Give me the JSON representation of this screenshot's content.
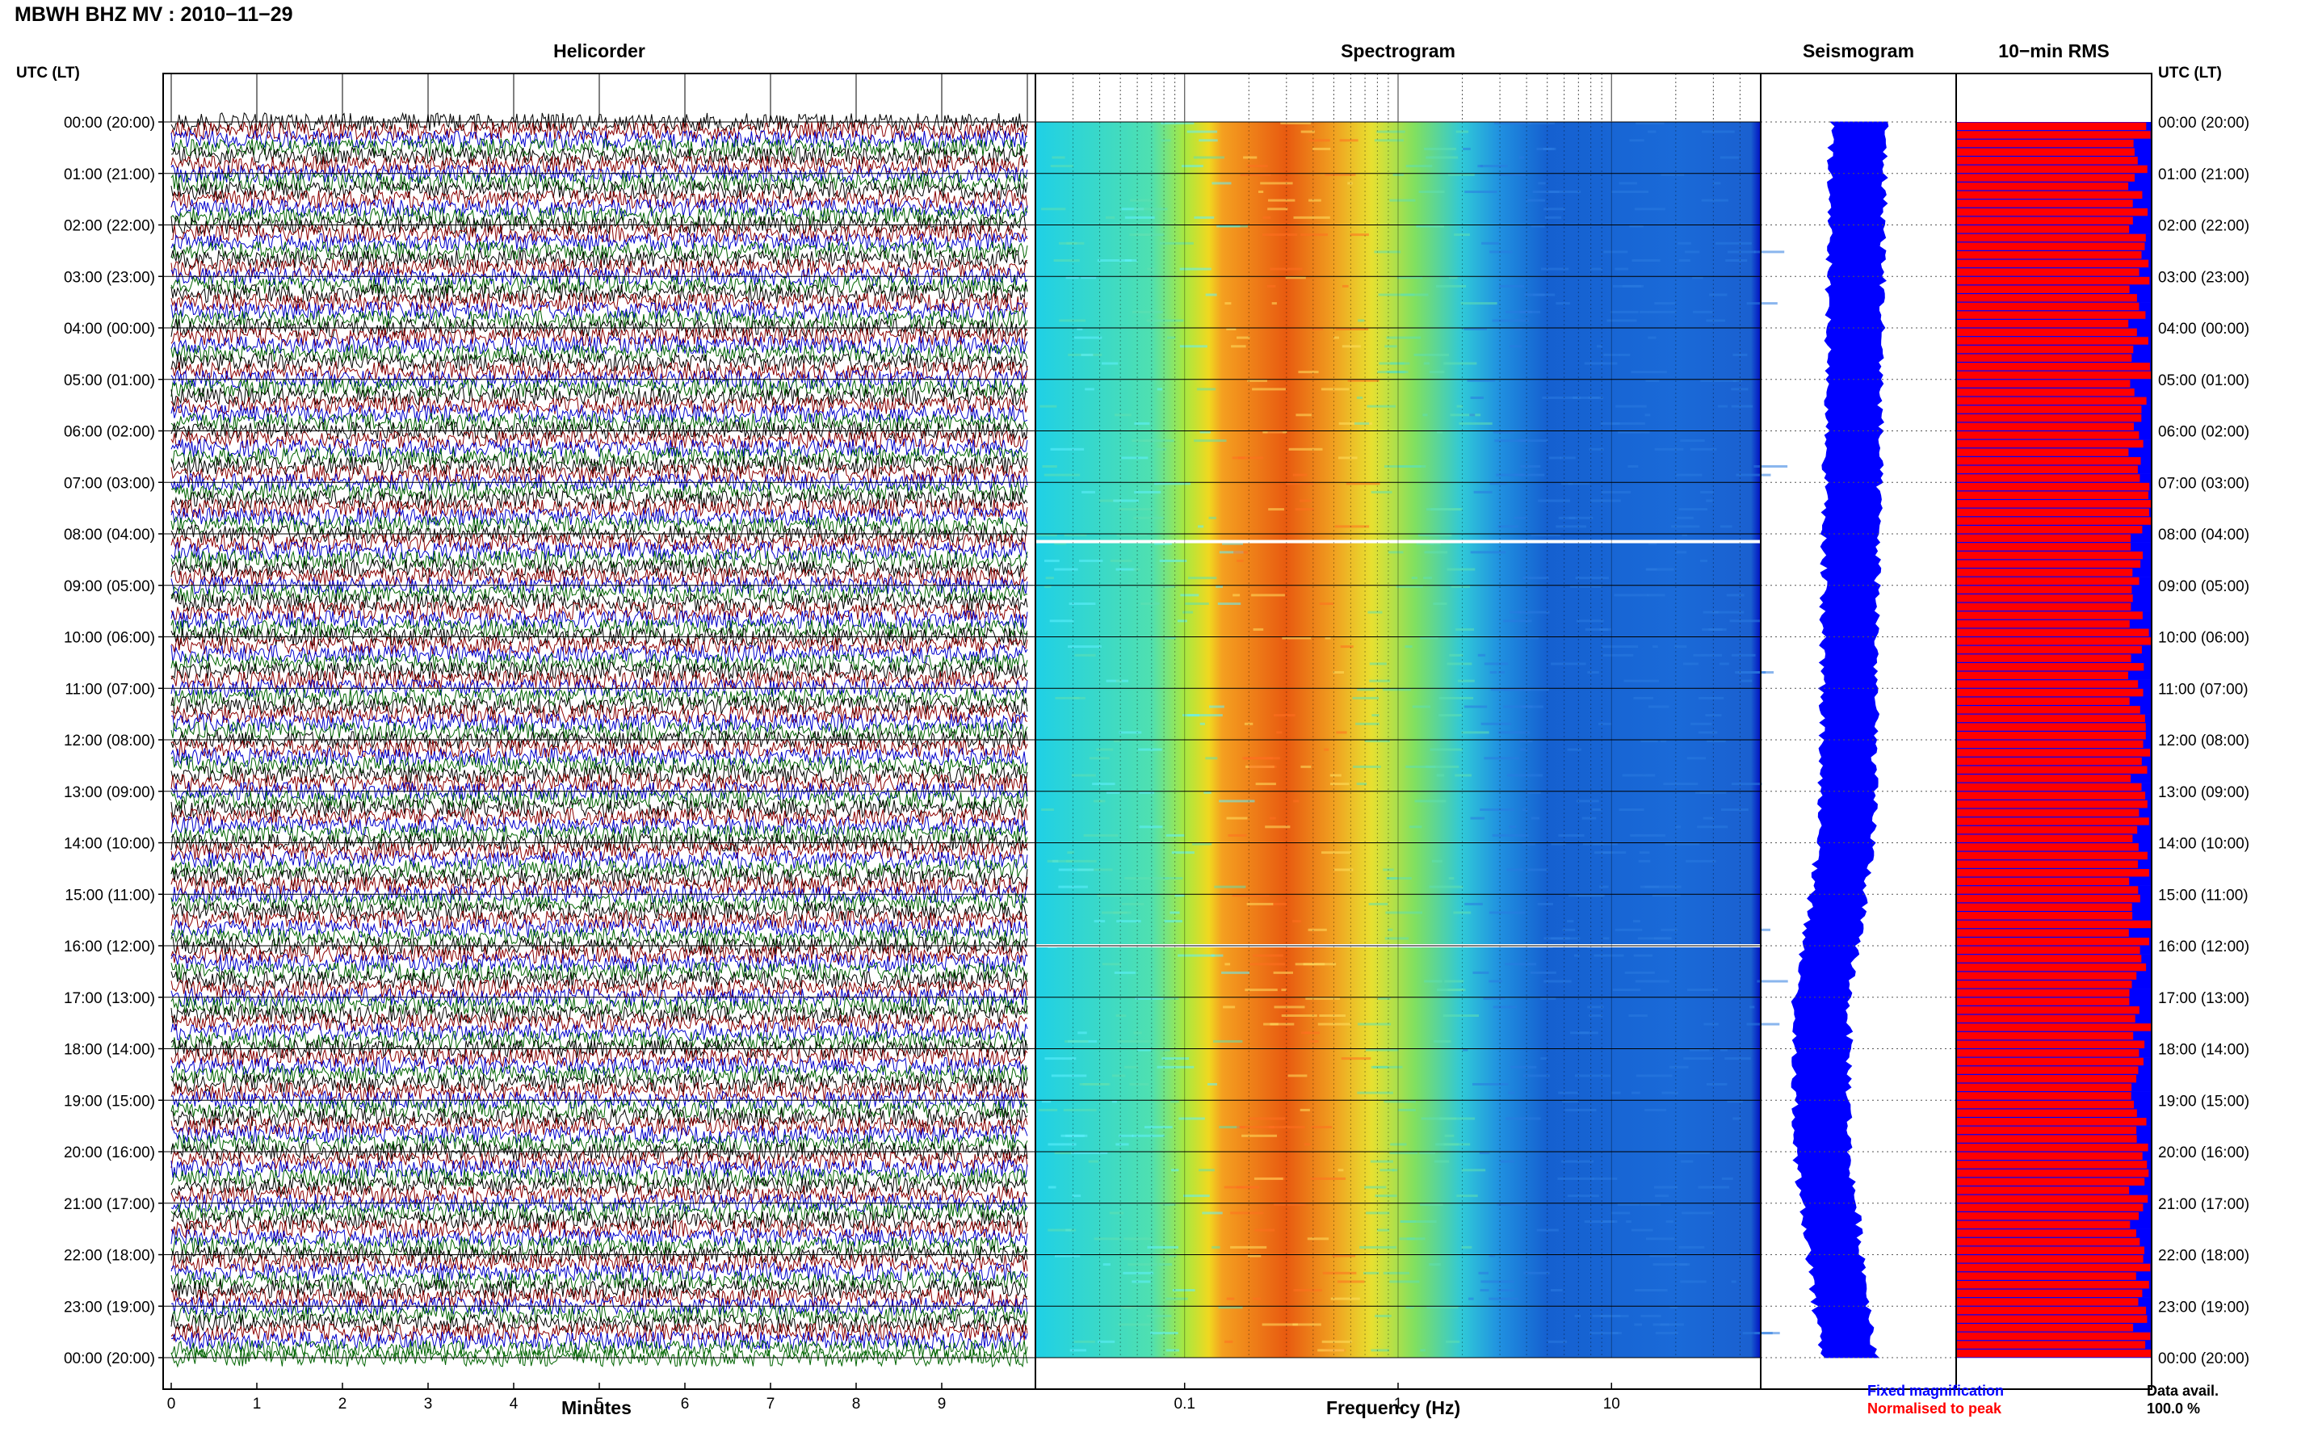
{
  "header": {
    "title": "MBWH BHZ MV : 2010−11−29",
    "utc_label": "UTC (LT)",
    "utc_label_right": "UTC (LT)"
  },
  "panels": {
    "helicorder": "Helicorder",
    "spectrogram": "Spectrogram",
    "seismogram": "Seismogram",
    "rms": "10−min RMS"
  },
  "axes": {
    "helicorder_xlabel": "Minutes",
    "spectrogram_xlabel": "Frequency (Hz)"
  },
  "legend": {
    "fixed": "Fixed magnification",
    "normalised": "Normalised to peak",
    "data_avail_label": "Data avail.",
    "data_avail_value": "100.0 %"
  },
  "colors": {
    "trace_cycle": [
      "#000000",
      "#8b0000",
      "#0000cc",
      "#006400"
    ],
    "seismogram_fill": "#0000ff",
    "rms_fixed": "#0000ff",
    "rms_normalised": "#ff0000"
  },
  "chart_data": [
    {
      "type": "line",
      "name": "helicorder",
      "title": "Helicorder",
      "xlabel": "Minutes",
      "xlim": [
        0,
        10
      ],
      "x_ticks": [
        0,
        1,
        2,
        3,
        4,
        5,
        6,
        7,
        8,
        9
      ],
      "rows_per_hour": 6,
      "hours": 24,
      "y_tick_labels": [
        "00:00 (20:00)",
        "01:00 (21:00)",
        "02:00 (22:00)",
        "03:00 (23:00)",
        "04:00 (00:00)",
        "05:00 (01:00)",
        "06:00 (02:00)",
        "07:00 (03:00)",
        "08:00 (04:00)",
        "09:00 (05:00)",
        "10:00 (06:00)",
        "11:00 (07:00)",
        "12:00 (08:00)",
        "13:00 (09:00)",
        "14:00 (10:00)",
        "15:00 (11:00)",
        "16:00 (12:00)",
        "17:00 (13:00)",
        "18:00 (14:00)",
        "19:00 (15:00)",
        "20:00 (16:00)",
        "21:00 (17:00)",
        "22:00 (18:00)",
        "23:00 (19:00)",
        "00:00 (20:00)"
      ]
    },
    {
      "type": "heatmap",
      "name": "spectrogram",
      "title": "Spectrogram",
      "xlabel": "Frequency (Hz)",
      "x_scale": "log",
      "xlim": [
        0.02,
        50
      ],
      "x_tick_labels": [
        0.1,
        1,
        10
      ],
      "peak_band_hz": [
        0.15,
        0.5
      ],
      "data_gap_hours": [
        8.15,
        16.0
      ]
    },
    {
      "type": "area",
      "name": "seismogram",
      "title": "Seismogram",
      "hours": 24
    },
    {
      "type": "bar",
      "name": "rms",
      "title": "10−min RMS",
      "bins": 144,
      "series": [
        {
          "name": "Fixed magnification",
          "color": "#0000ff"
        },
        {
          "name": "Normalised to peak",
          "color": "#ff0000"
        }
      ],
      "data_availability_percent": 100.0
    }
  ]
}
